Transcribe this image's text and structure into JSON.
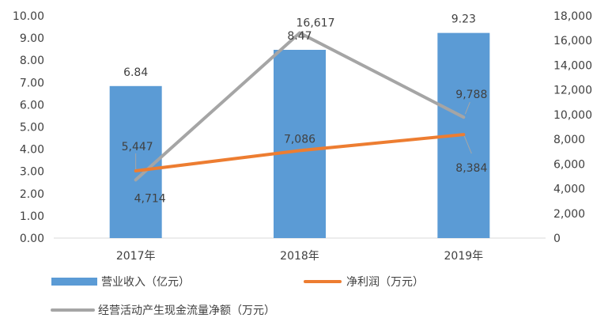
{
  "chart_data": {
    "type": "bar+line",
    "categories": [
      "2017年",
      "2018年",
      "2019年"
    ],
    "left_axis": {
      "ylim": [
        0,
        10
      ],
      "ticks": [
        "0.00",
        "1.00",
        "2.00",
        "3.00",
        "4.00",
        "5.00",
        "6.00",
        "7.00",
        "8.00",
        "9.00",
        "10.00"
      ]
    },
    "right_axis": {
      "ylim": [
        0,
        18000
      ],
      "ticks": [
        "0",
        "2,000",
        "4,000",
        "6,000",
        "8,000",
        "10,000",
        "12,000",
        "14,000",
        "16,000",
        "18,000"
      ]
    },
    "series": [
      {
        "name": "营业收入（亿元）",
        "type": "bar",
        "axis": "left",
        "color": "#5B9BD5",
        "values": [
          6.84,
          8.47,
          9.23
        ],
        "labels": [
          "6.84",
          "8.47",
          "9.23"
        ]
      },
      {
        "name": "净利润（万元）",
        "type": "line",
        "axis": "right",
        "color": "#ED7D31",
        "values": [
          5447,
          7086,
          8384
        ],
        "labels": [
          "5,447",
          "7,086",
          "8,384"
        ]
      },
      {
        "name": "经营活动产生现金流量净额（万元）",
        "type": "line",
        "axis": "right",
        "color": "#A5A5A5",
        "values": [
          4714,
          16617,
          9788
        ],
        "labels": [
          "4,714",
          "16,617",
          "9,788"
        ]
      }
    ],
    "grid": false,
    "legend": "bottom"
  }
}
